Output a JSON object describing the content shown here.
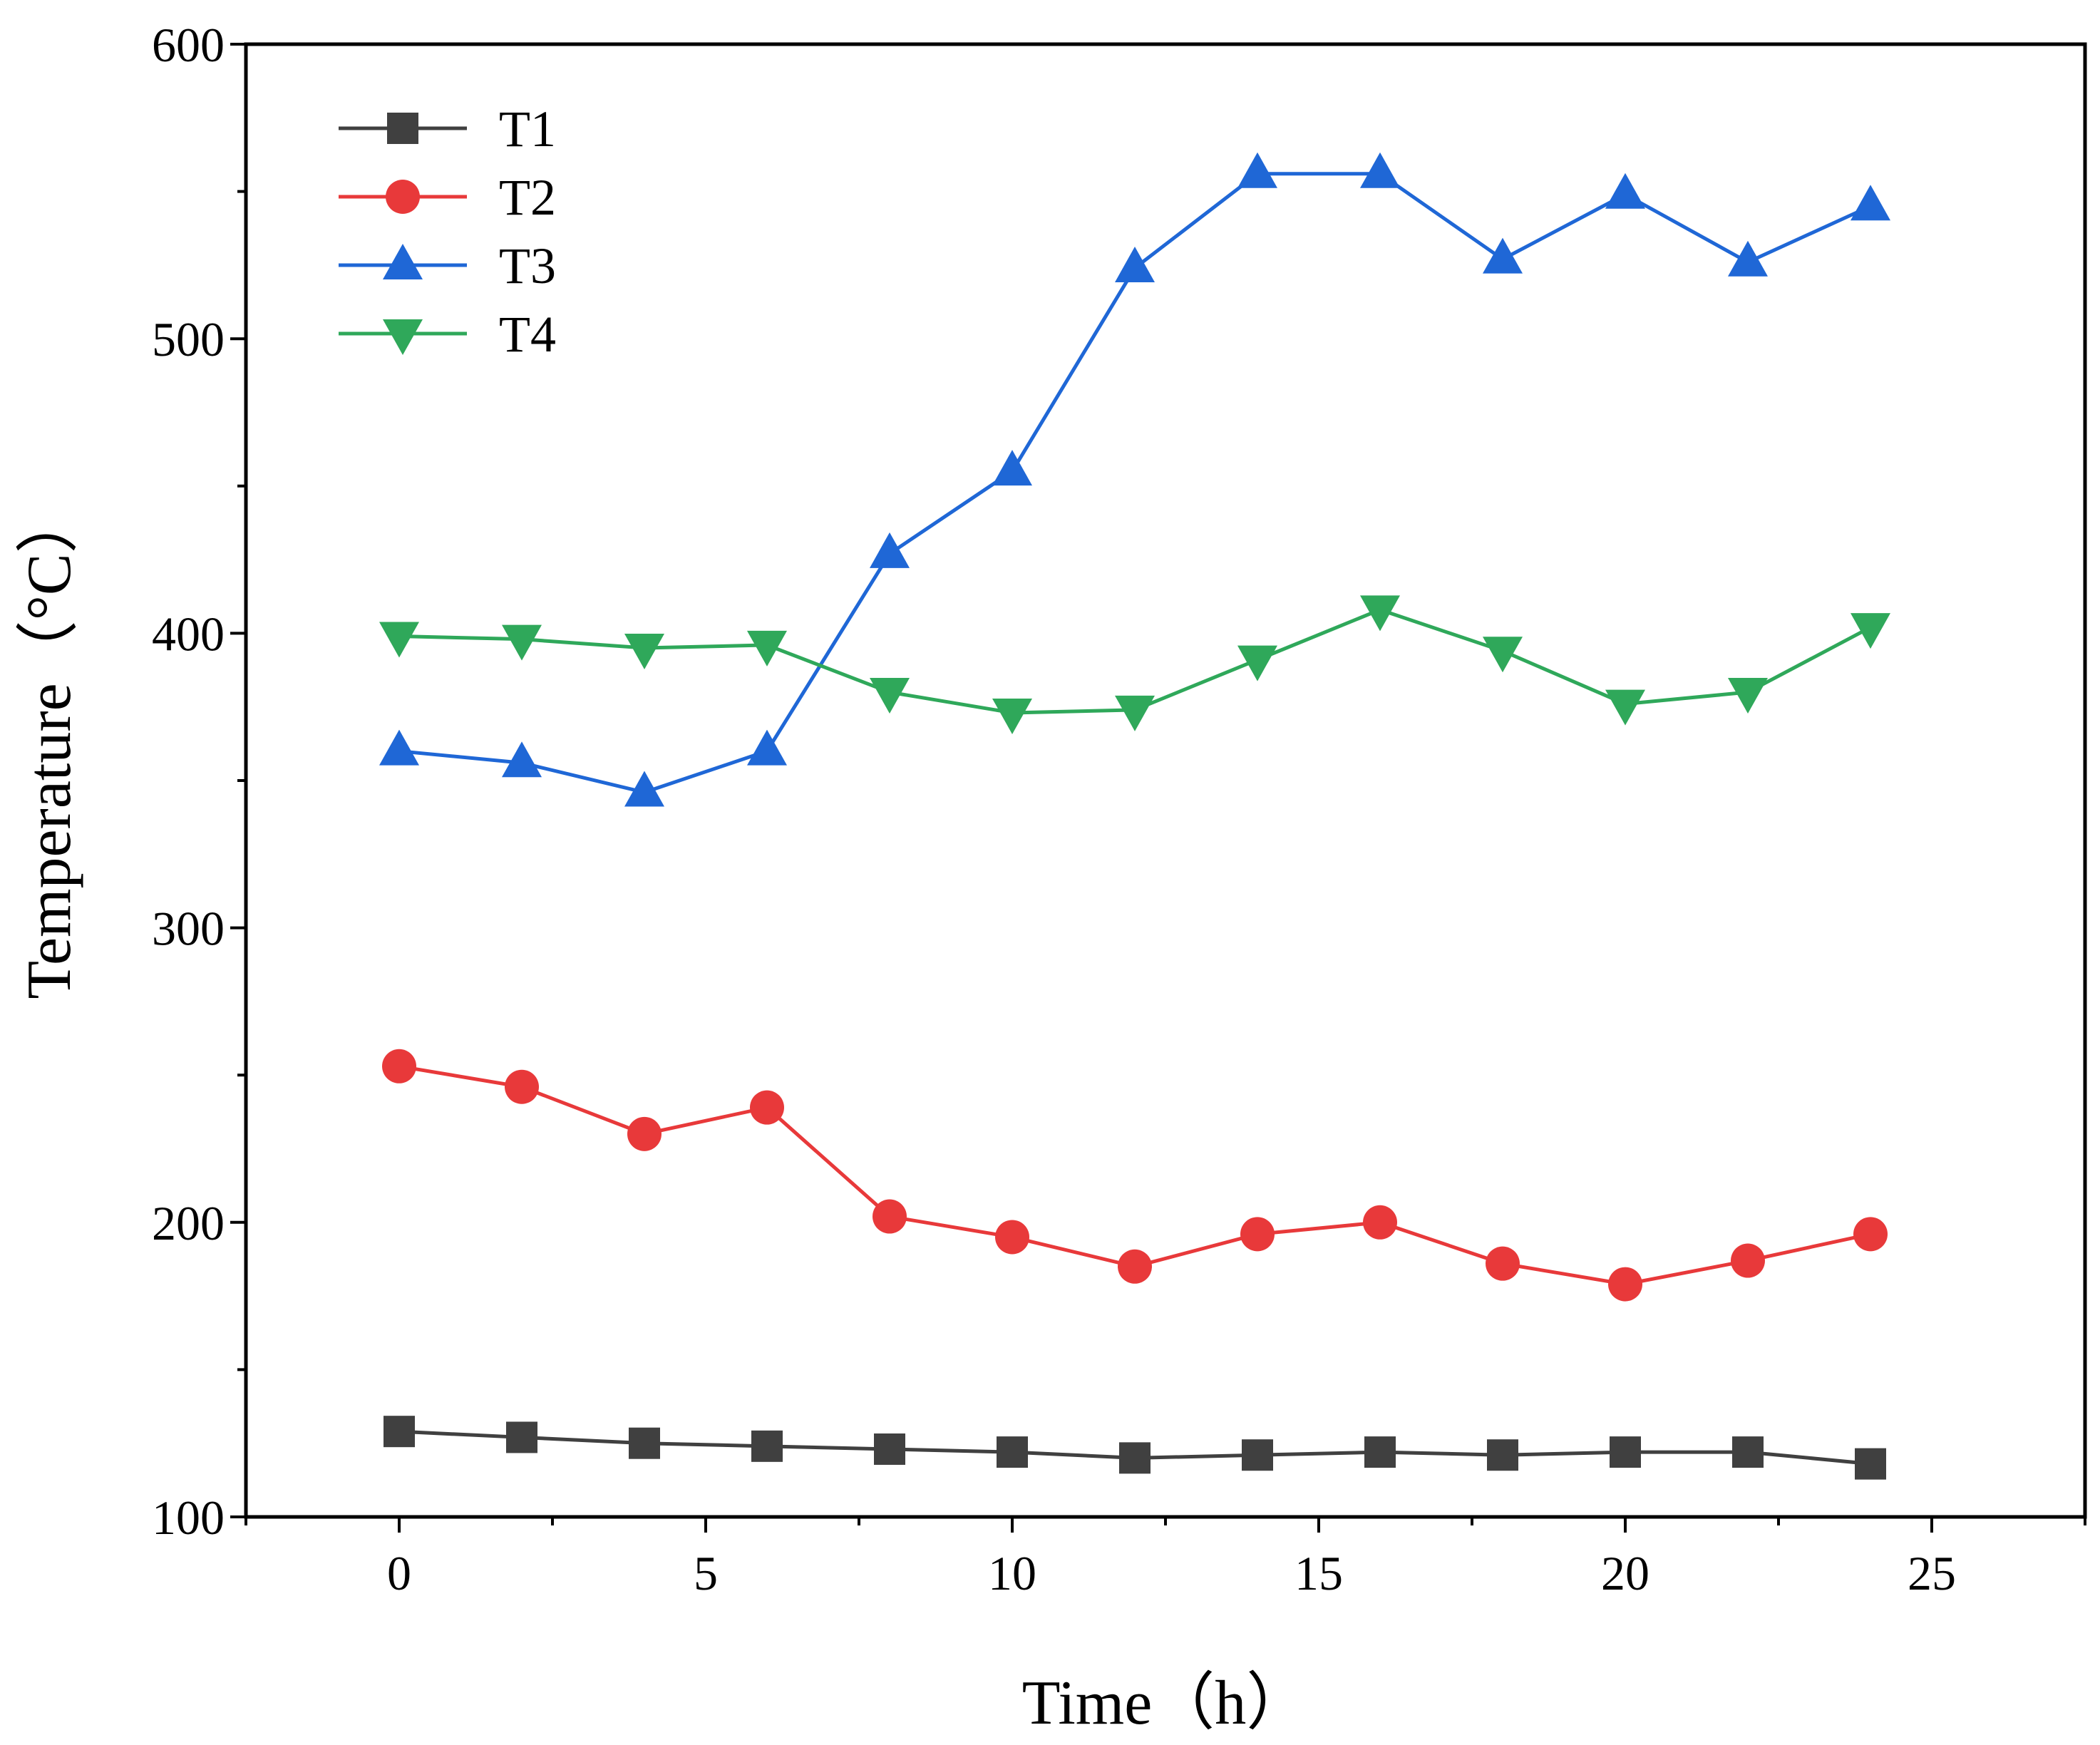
{
  "chart_data": {
    "type": "line",
    "title": "",
    "xlabel": "Time（h）",
    "ylabel": "Temperature（°C）",
    "xlim": [
      -2.5,
      27.5
    ],
    "ylim": [
      100,
      600
    ],
    "xticks": [
      0,
      5,
      10,
      15,
      20,
      25
    ],
    "yticks": [
      100,
      200,
      300,
      400,
      500,
      600
    ],
    "grid": false,
    "legend_position": "top-left",
    "x": [
      0,
      2,
      4,
      6,
      8,
      10,
      12,
      14,
      16,
      18,
      20,
      22,
      24
    ],
    "series": [
      {
        "name": "T1",
        "color": "#404040",
        "marker": "square",
        "values": [
          129,
          127,
          125,
          124,
          123,
          122,
          120,
          121,
          122,
          121,
          122,
          122,
          118
        ]
      },
      {
        "name": "T2",
        "color": "#e8393a",
        "marker": "circle",
        "values": [
          253,
          246,
          230,
          239,
          202,
          195,
          185,
          196,
          200,
          186,
          179,
          187,
          196
        ]
      },
      {
        "name": "T3",
        "color": "#1f67d6",
        "marker": "triangle-up",
        "values": [
          360,
          356,
          346,
          360,
          427,
          455,
          524,
          556,
          556,
          527,
          549,
          526,
          545
        ]
      },
      {
        "name": "T4",
        "color": "#2fa85a",
        "marker": "triangle-down",
        "values": [
          399,
          398,
          395,
          396,
          380,
          373,
          374,
          391,
          408,
          394,
          376,
          380,
          402
        ]
      }
    ]
  }
}
